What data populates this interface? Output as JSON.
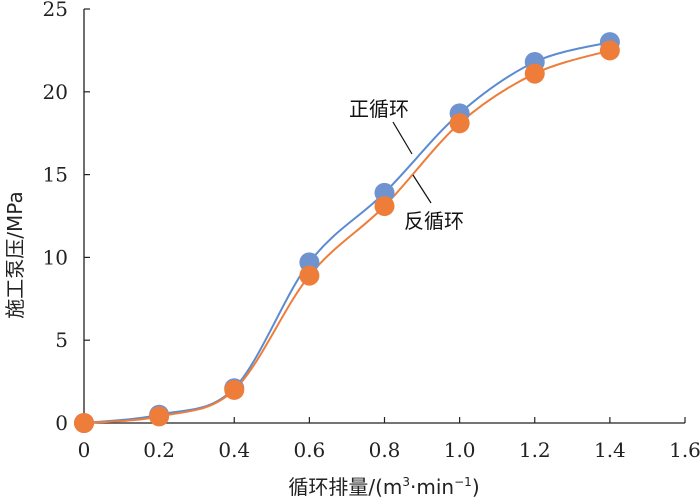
{
  "chart_data": {
    "type": "line",
    "title": "",
    "xlabel_main": "循环排量/(m",
    "xlabel_sup1": "3",
    "xlabel_mid": "·min",
    "xlabel_sup2": "−1",
    "xlabel_end": ")",
    "ylabel": "施工泵压/MPa",
    "xlim": [
      0,
      1.6
    ],
    "ylim": [
      0,
      25
    ],
    "xticks": [
      "0",
      "0.2",
      "0.4",
      "0.6",
      "0.8",
      "1.0",
      "1.2",
      "1.4",
      "1.6"
    ],
    "xtick_values": [
      0,
      0.2,
      0.4,
      0.6,
      0.8,
      1.0,
      1.2,
      1.4,
      1.6
    ],
    "yticks": [
      "0",
      "5",
      "10",
      "15",
      "20",
      "25"
    ],
    "ytick_values": [
      0,
      5,
      10,
      15,
      20,
      25
    ],
    "grid": false,
    "x": [
      0,
      0.2,
      0.4,
      0.6,
      0.8,
      1.0,
      1.2,
      1.4
    ],
    "series": [
      {
        "name": "正循环",
        "values": [
          0,
          0.5,
          2.1,
          9.7,
          13.9,
          18.7,
          21.8,
          23.0
        ],
        "color": "#6f93cf",
        "line_color": "#5b8bd0"
      },
      {
        "name": "反循环",
        "values": [
          0,
          0.4,
          2.0,
          8.9,
          13.1,
          18.1,
          21.1,
          22.5
        ],
        "color": "#ef7d3a",
        "line_color": "#ef7d3a"
      }
    ]
  }
}
